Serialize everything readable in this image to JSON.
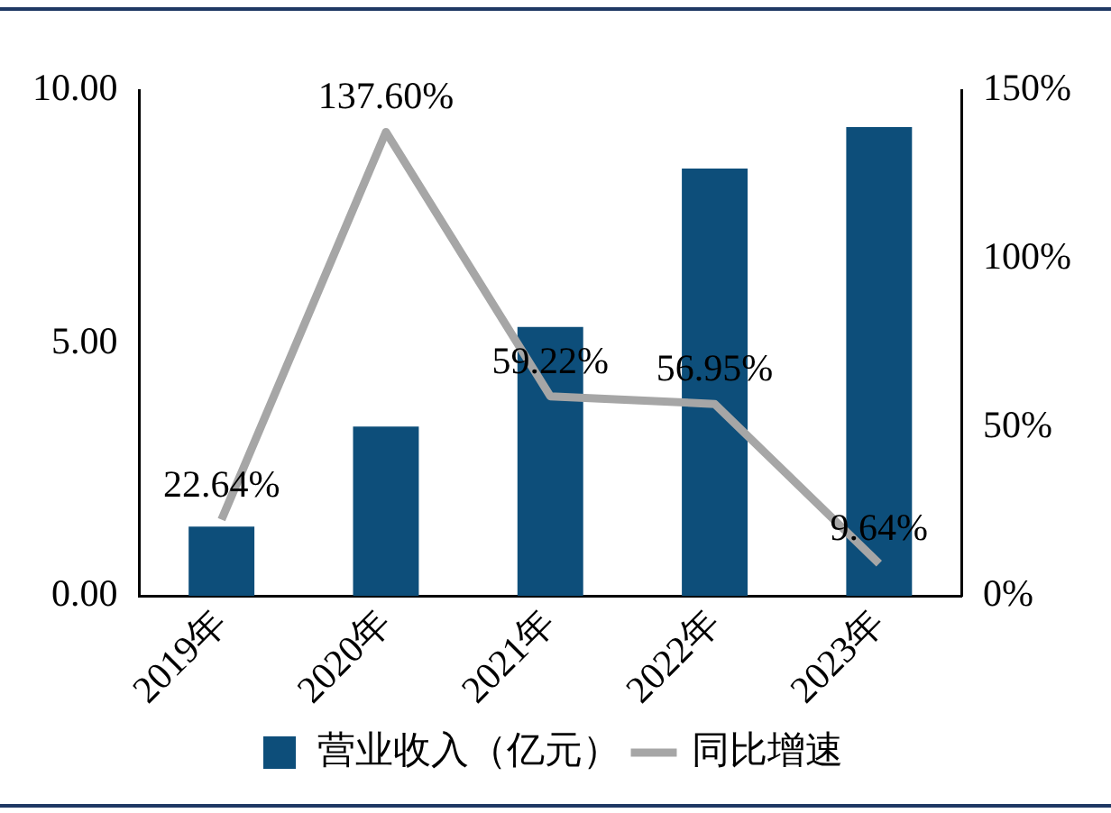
{
  "chart_data": {
    "type": "bar",
    "categories": [
      "2019年",
      "2020年",
      "2021年",
      "2022年",
      "2023年"
    ],
    "series": [
      {
        "name": "营业收入（亿元）",
        "color": "#0d4e7a",
        "values": [
          1.37,
          3.35,
          5.32,
          8.45,
          9.27
        ]
      },
      {
        "name": "同比增速",
        "type": "line",
        "axis": "y2",
        "color": "#a6a6a6",
        "values": [
          22.64,
          137.6,
          59.22,
          56.95,
          9.64
        ],
        "value_labels": [
          "22.64%",
          "137.60%",
          "59.22%",
          "56.95%",
          "9.64%"
        ],
        "marker": "none",
        "line_style": "solid"
      }
    ],
    "ylim": [
      0,
      10
    ],
    "yticks": [
      {
        "value": 0,
        "label": "0.00"
      },
      {
        "value": 5,
        "label": "5.00"
      },
      {
        "value": 10,
        "label": "10.00"
      }
    ],
    "y2lim": [
      0,
      150
    ],
    "y2ticks": [
      {
        "value": 0,
        "label": "0%"
      },
      {
        "value": 50,
        "label": "50%"
      },
      {
        "value": 100,
        "label": "100%"
      },
      {
        "value": 150,
        "label": "150%"
      }
    ],
    "grid": false,
    "legend": "bottom"
  }
}
